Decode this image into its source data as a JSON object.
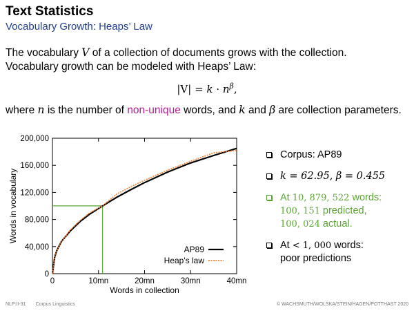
{
  "slide": {
    "title": "Text Statistics",
    "subtitle": "Vocabulary Growth: Heaps’ Law"
  },
  "intro": {
    "l1_a": "The vocabulary ",
    "l1_v": "V",
    "l1_b": " of a collection of documents grows with the collection.",
    "l2": "Vocabulary growth can be modeled with Heaps’ Law:"
  },
  "formula": {
    "lhs": "|V|",
    "eq": " = ",
    "k": "k",
    "dot": " · ",
    "n": "n",
    "beta": "β",
    "tail": ","
  },
  "where_line": {
    "a": "where ",
    "n": "n",
    "b": " is the number of ",
    "highlight": "non-unique",
    "c": " words, and ",
    "k": "k",
    "d": " and ",
    "beta": "β",
    "e": " are collection parameters."
  },
  "bullets": {
    "b1": "Corpus: AP89",
    "b2_k": "k = 62.95, β = 0.455",
    "b3_a": "At ",
    "b3_n": "10, 879, 522",
    "b3_b": " words:",
    "b3_pred_n": "100, 151",
    "b3_pred": " predicted,",
    "b3_act_n": "100, 024",
    "b3_act": " actual.",
    "b4_a": "At ",
    "b4_n": "< 1, 000",
    "b4_b": " words:",
    "b4_c": "poor predictions"
  },
  "footer": {
    "page": "NLP:II-31",
    "course": "Corpus Linguistics",
    "copyright": "© WACHSMUTH/WOLSKA/STEIN/HAGEN/POTTHAST 2020"
  },
  "colors": {
    "accent_blue": "#1f3c8f",
    "highlight_magenta": "#b0218f",
    "green": "#5aa531",
    "heaps_orange": "#ff7f2a",
    "ap89_black": "#000000"
  },
  "chart_data": {
    "type": "line",
    "xlabel": "Words in collection",
    "ylabel": "Words in vocabulary",
    "xlim": [
      0,
      40000000
    ],
    "ylim": [
      0,
      200000
    ],
    "x_ticks": [
      0,
      10000000,
      20000000,
      30000000,
      40000000
    ],
    "x_tick_labels": [
      "0",
      "10mn",
      "20mn",
      "30mn",
      "40mn"
    ],
    "y_ticks": [
      0,
      40000,
      80000,
      120000,
      160000,
      200000
    ],
    "y_tick_labels": [
      "0",
      "40,000",
      "80,000",
      "120,000",
      "160,000",
      "200,000"
    ],
    "legend_position": "bottom-right",
    "params": {
      "k": 62.95,
      "beta": 0.455
    },
    "x": [
      0,
      500000,
      1000000,
      2000000,
      4000000,
      6000000,
      8000000,
      10879522,
      14000000,
      17000000,
      20000000,
      25000000,
      30000000,
      35000000,
      40000000
    ],
    "series": [
      {
        "name": "AP89",
        "style": "solid",
        "color": "#000000",
        "values": [
          0,
          25000,
          35000,
          48000,
          64000,
          77000,
          87500,
          100024,
          113000,
          124000,
          134500,
          150000,
          163500,
          174500,
          185000
        ]
      },
      {
        "name": "Heap's law",
        "style": "dotted",
        "color": "#ff7f2a",
        "values": [
          0,
          25400,
          34800,
          47800,
          65400,
          78500,
          89500,
          100151,
          117800,
          128400,
          137900,
          152800,
          166000,
          178400,
          182000
        ]
      }
    ],
    "annotation": {
      "x": 10879522,
      "y": 100151,
      "color": "#5aa531"
    }
  }
}
